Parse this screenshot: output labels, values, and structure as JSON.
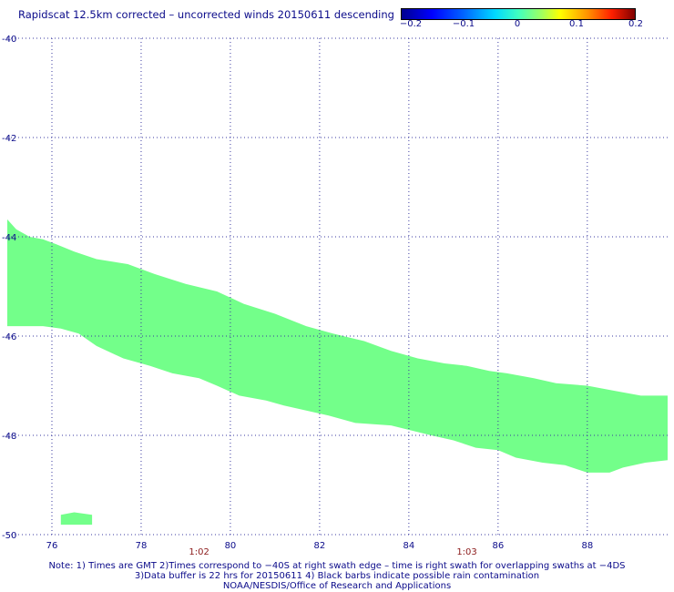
{
  "title": "Rapidscat 12.5km corrected – uncorrected winds 20150611 descending",
  "colorbar": {
    "ticks": [
      "−0.2",
      "−0.1",
      "0",
      "0.1",
      "0.2"
    ],
    "range": [
      -0.2,
      0.2
    ]
  },
  "axes": {
    "y_ticks": [
      "-40",
      "-42",
      "-44",
      "-46",
      "-48",
      "-50"
    ],
    "x_ticks": [
      "76",
      "78",
      "80",
      "82",
      "84",
      "86",
      "88"
    ],
    "x_range": [
      75.0,
      89.8
    ],
    "y_range": [
      -40,
      -50
    ]
  },
  "swath": {
    "fill_color": "#73ff8a",
    "value": 0,
    "top_edge": [
      [
        75.0,
        -43.65
      ],
      [
        75.2,
        -43.85
      ],
      [
        75.5,
        -44.0
      ],
      [
        75.8,
        -44.05
      ],
      [
        76.1,
        -44.15
      ],
      [
        76.5,
        -44.3
      ],
      [
        77.0,
        -44.45
      ],
      [
        77.7,
        -44.55
      ],
      [
        78.3,
        -44.75
      ],
      [
        79.0,
        -44.95
      ],
      [
        79.7,
        -45.1
      ],
      [
        80.3,
        -45.35
      ],
      [
        81.0,
        -45.55
      ],
      [
        81.7,
        -45.8
      ],
      [
        82.3,
        -45.95
      ],
      [
        83.0,
        -46.1
      ],
      [
        83.6,
        -46.3
      ],
      [
        84.2,
        -46.45
      ],
      [
        84.8,
        -46.55
      ],
      [
        85.3,
        -46.6
      ],
      [
        85.8,
        -46.7
      ],
      [
        86.2,
        -46.75
      ],
      [
        86.8,
        -46.85
      ],
      [
        87.3,
        -46.95
      ],
      [
        88.0,
        -47.0
      ],
      [
        88.6,
        -47.1
      ],
      [
        89.2,
        -47.2
      ],
      [
        89.8,
        -47.2
      ]
    ],
    "bottom_edge": [
      [
        89.8,
        -48.5
      ],
      [
        89.3,
        -48.55
      ],
      [
        88.8,
        -48.65
      ],
      [
        88.5,
        -48.75
      ],
      [
        88.0,
        -48.75
      ],
      [
        87.5,
        -48.6
      ],
      [
        87.0,
        -48.55
      ],
      [
        86.4,
        -48.45
      ],
      [
        86.0,
        -48.3
      ],
      [
        85.5,
        -48.25
      ],
      [
        85.0,
        -48.1
      ],
      [
        84.5,
        -48.0
      ],
      [
        83.6,
        -47.8
      ],
      [
        82.8,
        -47.75
      ],
      [
        82.2,
        -47.6
      ],
      [
        81.7,
        -47.5
      ],
      [
        81.2,
        -47.4
      ],
      [
        80.8,
        -47.3
      ],
      [
        80.2,
        -47.2
      ],
      [
        79.7,
        -47.0
      ],
      [
        79.3,
        -46.85
      ],
      [
        78.7,
        -46.75
      ],
      [
        78.2,
        -46.6
      ],
      [
        77.6,
        -46.45
      ],
      [
        77.0,
        -46.2
      ],
      [
        76.6,
        -45.95
      ],
      [
        76.2,
        -45.85
      ],
      [
        75.8,
        -45.8
      ],
      [
        75.0,
        -45.8
      ]
    ]
  },
  "small_patch": {
    "top_edge": [
      [
        76.2,
        -49.6
      ],
      [
        76.5,
        -49.55
      ],
      [
        76.9,
        -49.6
      ]
    ],
    "bottom_edge": [
      [
        76.9,
        -49.8
      ],
      [
        76.2,
        -49.8
      ]
    ]
  },
  "time_labels": [
    {
      "text": "1:02",
      "x": 79.3
    },
    {
      "text": "1:03",
      "x": 85.3
    }
  ],
  "notes": [
    "Note: 1) Times are GMT 2)Times correspond to −40S at right swath edge – time is right swath for overlapping swaths at −4DS",
    "3)Data buffer is 22 hrs for 20150611 4) Black barbs indicate possible rain contamination",
    "NOAA/NESDIS/Office of Research and Applications"
  ]
}
